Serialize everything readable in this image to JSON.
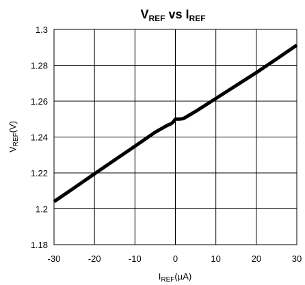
{
  "chart_data": {
    "type": "line",
    "title": {
      "main": "V",
      "main_sub": "REF",
      "vs": " vs ",
      "second": "I",
      "second_sub": "REF"
    },
    "xlabel": {
      "main": "I",
      "sub": "REF",
      "unit": "(µA)"
    },
    "ylabel": {
      "main": "V",
      "sub": "REF",
      "unit": "(V)"
    },
    "xlim": [
      -30,
      30
    ],
    "ylim": [
      1.18,
      1.3
    ],
    "x_ticks": [
      -30,
      -20,
      -10,
      0,
      10,
      20,
      30
    ],
    "x_tick_labels": [
      "-30",
      "-20",
      "-10",
      "0",
      "10",
      "20",
      "30"
    ],
    "y_ticks": [
      1.18,
      1.2,
      1.22,
      1.24,
      1.26,
      1.28,
      1.3
    ],
    "y_tick_labels": [
      "1.18",
      "1.2",
      "1.22",
      "1.24",
      "1.26",
      "1.28",
      "1.3"
    ],
    "grid": true,
    "legend": "none",
    "series": [
      {
        "color": "#000000",
        "x": [
          -30,
          -25,
          -20,
          -15,
          -10,
          -5,
          -2,
          -1,
          -0.5,
          0,
          0.5,
          1,
          2,
          5,
          10,
          15,
          20,
          25,
          30
        ],
        "y": [
          1.204,
          1.2117,
          1.2195,
          1.2272,
          1.2349,
          1.2427,
          1.2465,
          1.2475,
          1.2485,
          1.25,
          1.25,
          1.25,
          1.2503,
          1.2543,
          1.2615,
          1.2687,
          1.2759,
          1.2835,
          1.2912
        ]
      }
    ]
  }
}
